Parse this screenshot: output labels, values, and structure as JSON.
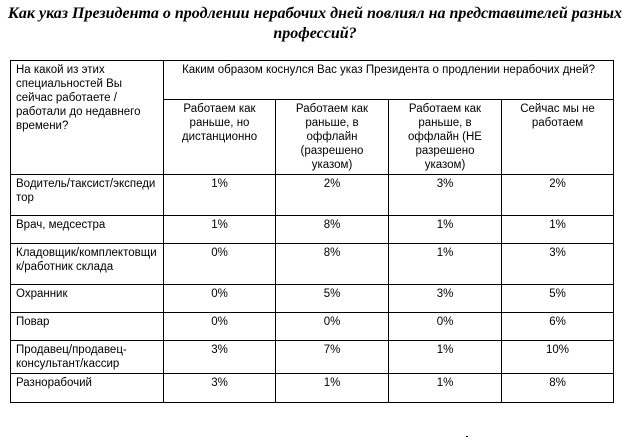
{
  "title": "Как указ Президента о продлении нерабочих дней повлиял на представителей разных профессий?",
  "table": {
    "row_header": "На какой из этих специальностей Вы сейчас работаете / работали до недавнего времени?",
    "question": "Каким образом коснулся Вас указ Президента о продлении нерабочих дней?",
    "columns": [
      "Работаем как раньше, но дистанционно",
      "Работаем как раньше, в оффлайн (разрешено указом)",
      "Работаем как раньше, в оффлайн (НЕ разрешено указом)",
      "Сейчас мы не работаем"
    ],
    "rows": [
      {
        "label": "Водитель/таксист/экспеди тор",
        "values": [
          "1%",
          "2%",
          "3%",
          "2%"
        ]
      },
      {
        "label": "Врач, медсестра",
        "values": [
          "1%",
          "8%",
          "1%",
          "1%"
        ]
      },
      {
        "label": "Кладовщик/комплектовщи к/работник склада",
        "values": [
          "0%",
          "8%",
          "1%",
          "3%"
        ]
      },
      {
        "label": "Охранник",
        "values": [
          "0%",
          "5%",
          "3%",
          "5%"
        ]
      },
      {
        "label": "Повар",
        "values": [
          "0%",
          "0%",
          "0%",
          "6%"
        ]
      },
      {
        "label": "Продавец/продавец-консультант/кассир",
        "values": [
          "3%",
          "7%",
          "1%",
          "10%"
        ]
      },
      {
        "label": "Разнорабочий",
        "values": [
          "3%",
          "1%",
          "1%",
          "8%"
        ]
      }
    ]
  }
}
